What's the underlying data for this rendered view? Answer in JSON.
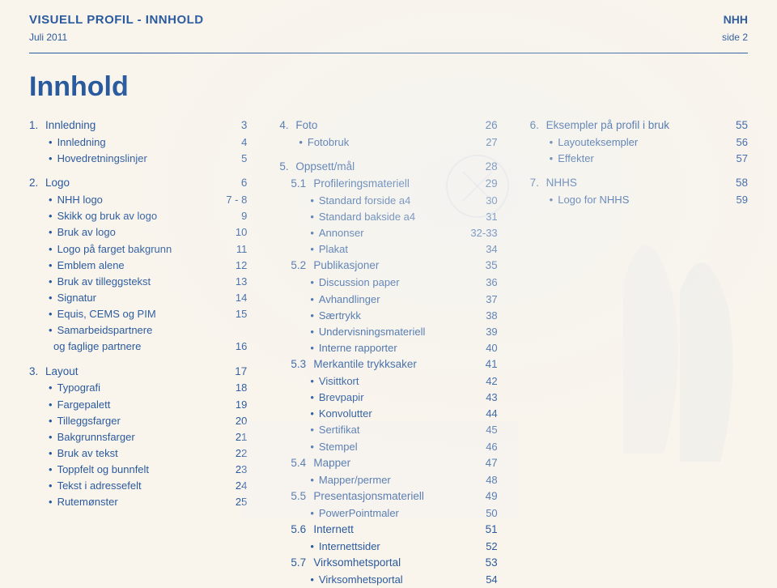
{
  "header": {
    "title": "VISUELL PROFIL  -  INNHOLD",
    "org": "NHH",
    "date": "Juli 2011",
    "page": "side  2"
  },
  "page_title": "Innhold",
  "columns": [
    [
      {
        "type": "section",
        "num": "1.",
        "label": "Innledning",
        "pg": "3"
      },
      {
        "type": "item",
        "label": "Innledning",
        "pg": "4"
      },
      {
        "type": "item",
        "label": "Hovedretningslinjer",
        "pg": "5"
      },
      {
        "type": "spacer"
      },
      {
        "type": "section",
        "num": "2.",
        "label": "Logo",
        "pg": "6"
      },
      {
        "type": "item",
        "label": "NHH logo",
        "pg": "7 - 8"
      },
      {
        "type": "item",
        "label": "Skikk og bruk av logo",
        "pg": "9"
      },
      {
        "type": "item",
        "label": "Bruk av logo",
        "pg": "10"
      },
      {
        "type": "item",
        "label": "Logo på farget bakgrunn",
        "pg": "11"
      },
      {
        "type": "item",
        "label": "Emblem alene",
        "pg": "12"
      },
      {
        "type": "item",
        "label": "Bruk av tilleggstekst",
        "pg": "13"
      },
      {
        "type": "item",
        "label": "Signatur",
        "pg": "14"
      },
      {
        "type": "item",
        "label": "Equis, CEMS og PIM",
        "pg": "15"
      },
      {
        "type": "item",
        "label": "Samarbeidspartnere",
        "pg": ""
      },
      {
        "type": "item-noblt",
        "label": "og faglige partnere",
        "pg": "16"
      },
      {
        "type": "spacer"
      },
      {
        "type": "section",
        "num": "3.",
        "label": "Layout",
        "pg": "17"
      },
      {
        "type": "item",
        "label": "Typografi",
        "pg": "18"
      },
      {
        "type": "item",
        "label": "Fargepalett",
        "pg": "19"
      },
      {
        "type": "item",
        "label": "Tilleggsfarger",
        "pg": "20"
      },
      {
        "type": "item",
        "label": "Bakgrunnsfarger",
        "pg": "21"
      },
      {
        "type": "item",
        "label": "Bruk av tekst",
        "pg": "22"
      },
      {
        "type": "item",
        "label": "Toppfelt og bunnfelt",
        "pg": "23"
      },
      {
        "type": "item",
        "label": "Tekst i adressefelt",
        "pg": "24"
      },
      {
        "type": "item",
        "label": "Rutemønster",
        "pg": "25"
      }
    ],
    [
      {
        "type": "section",
        "num": "4.",
        "label": "Foto",
        "pg": "26"
      },
      {
        "type": "item",
        "label": "Fotobruk",
        "pg": "27"
      },
      {
        "type": "spacer"
      },
      {
        "type": "section",
        "num": "5.",
        "label": "Oppsett/mål",
        "pg": "28"
      },
      {
        "type": "sub",
        "num": "5.1",
        "label": "Profileringsmateriell",
        "pg": "29"
      },
      {
        "type": "item",
        "sub": true,
        "label": "Standard forside a4",
        "pg": "30"
      },
      {
        "type": "item",
        "sub": true,
        "label": "Standard bakside a4",
        "pg": "31"
      },
      {
        "type": "item",
        "sub": true,
        "label": "Annonser",
        "pg": "32-33"
      },
      {
        "type": "item",
        "sub": true,
        "label": "Plakat",
        "pg": "34"
      },
      {
        "type": "sub",
        "num": "5.2",
        "label": "Publikasjoner",
        "pg": "35"
      },
      {
        "type": "item",
        "sub": true,
        "label": "Discussion paper",
        "pg": "36"
      },
      {
        "type": "item",
        "sub": true,
        "label": "Avhandlinger",
        "pg": "37"
      },
      {
        "type": "item",
        "sub": true,
        "label": "Særtrykk",
        "pg": "38"
      },
      {
        "type": "item",
        "sub": true,
        "label": "Undervisningsmateriell",
        "pg": "39"
      },
      {
        "type": "item",
        "sub": true,
        "label": "Interne rapporter",
        "pg": "40"
      },
      {
        "type": "sub",
        "num": "5.3",
        "label": "Merkantile trykksaker",
        "pg": "41"
      },
      {
        "type": "item",
        "sub": true,
        "label": "Visittkort",
        "pg": "42"
      },
      {
        "type": "item",
        "sub": true,
        "label": "Brevpapir",
        "pg": "43"
      },
      {
        "type": "item",
        "sub": true,
        "label": "Konvolutter",
        "pg": "44"
      },
      {
        "type": "item",
        "sub": true,
        "label": "Sertifikat",
        "pg": "45"
      },
      {
        "type": "item",
        "sub": true,
        "label": "Stempel",
        "pg": "46"
      },
      {
        "type": "sub",
        "num": "5.4",
        "label": "Mapper",
        "pg": "47"
      },
      {
        "type": "item",
        "sub": true,
        "label": "Mapper/permer",
        "pg": "48"
      },
      {
        "type": "sub",
        "num": "5.5",
        "label": "Presentasjonsmateriell",
        "pg": "49"
      },
      {
        "type": "item",
        "sub": true,
        "label": "PowerPointmaler",
        "pg": "50"
      },
      {
        "type": "sub",
        "num": "5.6",
        "label": "Internett",
        "pg": "51"
      },
      {
        "type": "item",
        "sub": true,
        "label": "Internettsider",
        "pg": "52"
      },
      {
        "type": "sub",
        "num": "5.7",
        "label": "Virksomhetsportal",
        "pg": "53"
      },
      {
        "type": "item",
        "sub": true,
        "label": "Virksomhetsportal",
        "pg": "54"
      }
    ],
    [
      {
        "type": "section",
        "num": "6.",
        "label": "Eksempler på profil i bruk",
        "pg": "55"
      },
      {
        "type": "item",
        "label": "Layouteksempler",
        "pg": "56"
      },
      {
        "type": "item",
        "label": "Effekter",
        "pg": "57"
      },
      {
        "type": "spacer"
      },
      {
        "type": "section",
        "num": "7.",
        "label": "NHHS",
        "pg": "58"
      },
      {
        "type": "item",
        "label": "Logo for NHHS",
        "pg": "59"
      }
    ]
  ],
  "colors": {
    "bg": "#faf5ec",
    "ink": "#2a5a9e",
    "overlay": "#e8ebee"
  }
}
